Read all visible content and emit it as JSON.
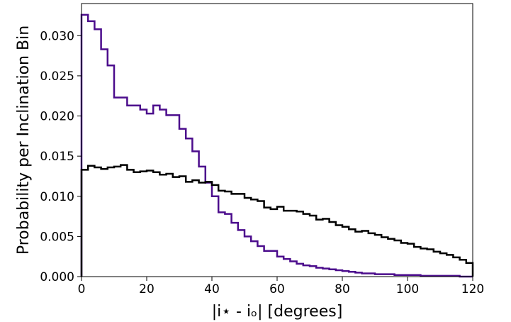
{
  "chart_data": {
    "type": "line",
    "style": "step histogram",
    "title": "",
    "xlabel": "|i⋆ - iₒ| [degrees]",
    "ylabel": "Probability per Inclination Bin",
    "xlim": [
      0,
      120
    ],
    "ylim": [
      0,
      0.034
    ],
    "bin_width": 2,
    "xticks": [
      0,
      20,
      40,
      60,
      80,
      100,
      120
    ],
    "xtick_labels": [
      "0",
      "20",
      "40",
      "60",
      "80",
      "100",
      "120"
    ],
    "yticks": [
      0.0,
      0.005,
      0.01,
      0.015,
      0.02,
      0.025,
      0.03
    ],
    "ytick_labels": [
      "0.000",
      "0.005",
      "0.010",
      "0.015",
      "0.020",
      "0.025",
      "0.030"
    ],
    "grid": false,
    "legend": false,
    "series": [
      {
        "color": "#4b0c8c",
        "bin_edges": [
          0,
          2,
          4,
          6,
          8,
          10,
          12,
          14,
          16,
          18,
          20,
          22,
          24,
          26,
          28,
          30,
          32,
          34,
          36,
          38,
          40,
          42,
          44,
          46,
          48,
          50,
          52,
          54,
          56,
          58,
          60,
          62,
          64,
          66,
          68,
          70,
          72,
          74,
          76,
          78,
          80,
          82,
          84,
          86,
          88,
          90,
          92,
          94,
          96,
          98,
          100,
          102,
          104,
          106,
          108,
          110,
          112,
          114,
          116,
          118,
          120
        ],
        "values": [
          0.0326,
          0.0318,
          0.0308,
          0.0283,
          0.0263,
          0.0223,
          0.0223,
          0.0213,
          0.0213,
          0.0208,
          0.0203,
          0.0213,
          0.0208,
          0.0201,
          0.0201,
          0.0184,
          0.0172,
          0.0156,
          0.0137,
          0.0117,
          0.01,
          0.008,
          0.0078,
          0.0067,
          0.0058,
          0.005,
          0.0044,
          0.0038,
          0.0032,
          0.0032,
          0.0025,
          0.0022,
          0.0019,
          0.0016,
          0.0014,
          0.0013,
          0.0011,
          0.001,
          0.0009,
          0.0008,
          0.0007,
          0.0006,
          0.0005,
          0.0004,
          0.0004,
          0.0003,
          0.0003,
          0.0003,
          0.0002,
          0.0002,
          0.0002,
          0.0002,
          0.0001,
          0.0001,
          0.0001,
          0.0001,
          0.0001,
          0.0001,
          0.0,
          0.0
        ]
      },
      {
        "color": "#000000",
        "bin_edges": [
          0,
          2,
          4,
          6,
          8,
          10,
          12,
          14,
          16,
          18,
          20,
          22,
          24,
          26,
          28,
          30,
          32,
          34,
          36,
          38,
          40,
          42,
          44,
          46,
          48,
          50,
          52,
          54,
          56,
          58,
          60,
          62,
          64,
          66,
          68,
          70,
          72,
          74,
          76,
          78,
          80,
          82,
          84,
          86,
          88,
          90,
          92,
          94,
          96,
          98,
          100,
          102,
          104,
          106,
          108,
          110,
          112,
          114,
          116,
          118,
          120
        ],
        "values": [
          0.0133,
          0.0138,
          0.0136,
          0.0134,
          0.0136,
          0.0137,
          0.0139,
          0.0133,
          0.013,
          0.0131,
          0.0132,
          0.013,
          0.0127,
          0.0128,
          0.0124,
          0.0125,
          0.0118,
          0.012,
          0.0117,
          0.0118,
          0.0114,
          0.0107,
          0.0106,
          0.0103,
          0.0103,
          0.0098,
          0.0096,
          0.0094,
          0.0086,
          0.0084,
          0.0087,
          0.0082,
          0.0082,
          0.0081,
          0.0078,
          0.0076,
          0.0071,
          0.0072,
          0.0068,
          0.0064,
          0.0062,
          0.0059,
          0.0056,
          0.0057,
          0.0054,
          0.0052,
          0.0049,
          0.0047,
          0.0045,
          0.0042,
          0.0041,
          0.0037,
          0.0035,
          0.0034,
          0.0031,
          0.0029,
          0.0027,
          0.0024,
          0.0021,
          0.0017
        ]
      }
    ]
  }
}
